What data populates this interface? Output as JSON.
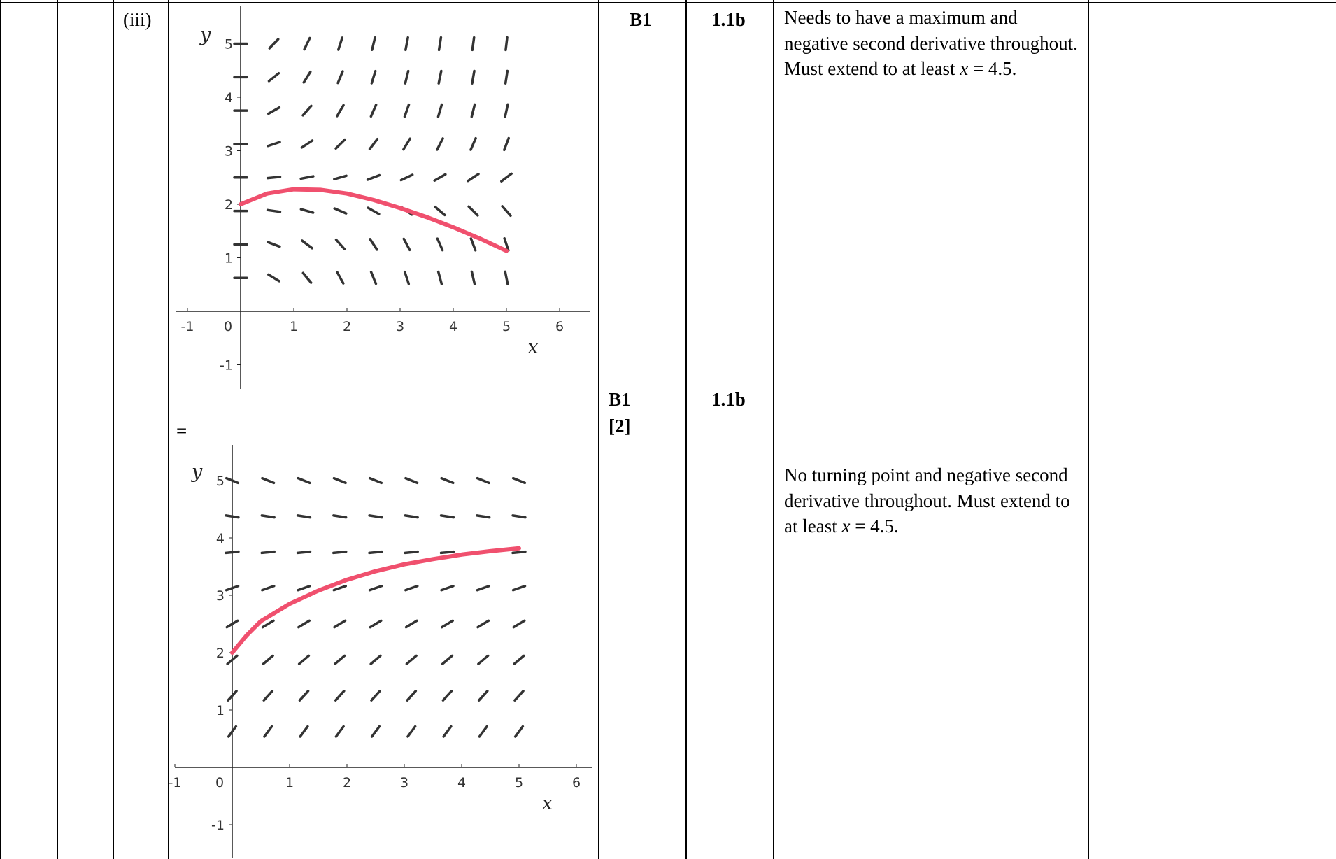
{
  "question_part": "(iii)",
  "separator_mark": "=",
  "rows": [
    {
      "mark": "B1",
      "ao": "1.1b",
      "guidance": {
        "text": "Needs to have a maximum and negative second derivative throughout. Must extend to at least",
        "var": "x",
        "tail": " = 4.5."
      }
    },
    {
      "mark": "B1",
      "total": "[2]",
      "ao": "1.1b",
      "guidance": {
        "text": "No turning point and negative second derivative throughout. Must extend to at least",
        "var": "x",
        "tail": " = 4.5."
      }
    }
  ],
  "chart_data": [
    {
      "type": "line",
      "subtype": "slope-field",
      "xlabel": "x",
      "ylabel": "y",
      "xlim": [
        -1.2,
        6.5
      ],
      "ylim": [
        -1.5,
        5.6
      ],
      "x_ticks": [
        -1,
        0,
        1,
        2,
        3,
        4,
        5,
        6
      ],
      "y_ticks": [
        -1,
        1,
        2,
        3,
        4,
        5
      ],
      "tick_labels_x": [
        "-1",
        "0",
        "1",
        "2",
        "3",
        "4",
        "5",
        "6"
      ],
      "tick_labels_y": [
        "-1",
        "1",
        "2",
        "3",
        "4",
        "5"
      ],
      "field_x": [
        0,
        0.625,
        1.25,
        1.875,
        2.5,
        3.125,
        3.75,
        4.375,
        5
      ],
      "field_y": [
        0.625,
        1.25,
        1.875,
        2.5,
        3.125,
        3.75,
        4.375,
        5
      ],
      "slope_rule": "dy/dx = 0.6 * x * (y - 2.25)",
      "field_color": "#333333",
      "curve_color": "#f0506e",
      "curve": {
        "x": [
          0,
          0.5,
          1,
          1.5,
          2,
          2.5,
          3,
          3.5,
          4,
          4.5,
          5
        ],
        "y": [
          2.0,
          2.2,
          2.28,
          2.27,
          2.2,
          2.08,
          1.93,
          1.76,
          1.57,
          1.36,
          1.13
        ]
      }
    },
    {
      "type": "line",
      "subtype": "slope-field",
      "xlabel": "x",
      "ylabel": "y",
      "xlim": [
        -1.1,
        6.1
      ],
      "ylim": [
        -1.5,
        5.6
      ],
      "x_ticks": [
        -1,
        0,
        1,
        2,
        3,
        4,
        5,
        6
      ],
      "y_ticks": [
        -1,
        1,
        2,
        3,
        4,
        5
      ],
      "tick_labels_x": [
        "-1",
        "0",
        "1",
        "2",
        "3",
        "4",
        "5",
        "6"
      ],
      "tick_labels_y": [
        "-1",
        "1",
        "2",
        "3",
        "4",
        "5"
      ],
      "field_x": [
        0,
        0.625,
        1.25,
        1.875,
        2.5,
        3.125,
        3.75,
        4.375,
        5
      ],
      "field_y": [
        0.625,
        1.25,
        1.875,
        2.5,
        3.125,
        3.75,
        4.375,
        5
      ],
      "slope_rule": "dy/dx = 0.4 * (4 - y)",
      "field_color": "#333333",
      "curve_color": "#f0506e",
      "curve": {
        "x": [
          0,
          0.25,
          0.5,
          1,
          1.5,
          2,
          2.5,
          3,
          3.5,
          4,
          4.5,
          5
        ],
        "y": [
          2.0,
          2.3,
          2.55,
          2.85,
          3.08,
          3.27,
          3.42,
          3.54,
          3.63,
          3.71,
          3.77,
          3.82
        ]
      }
    }
  ]
}
